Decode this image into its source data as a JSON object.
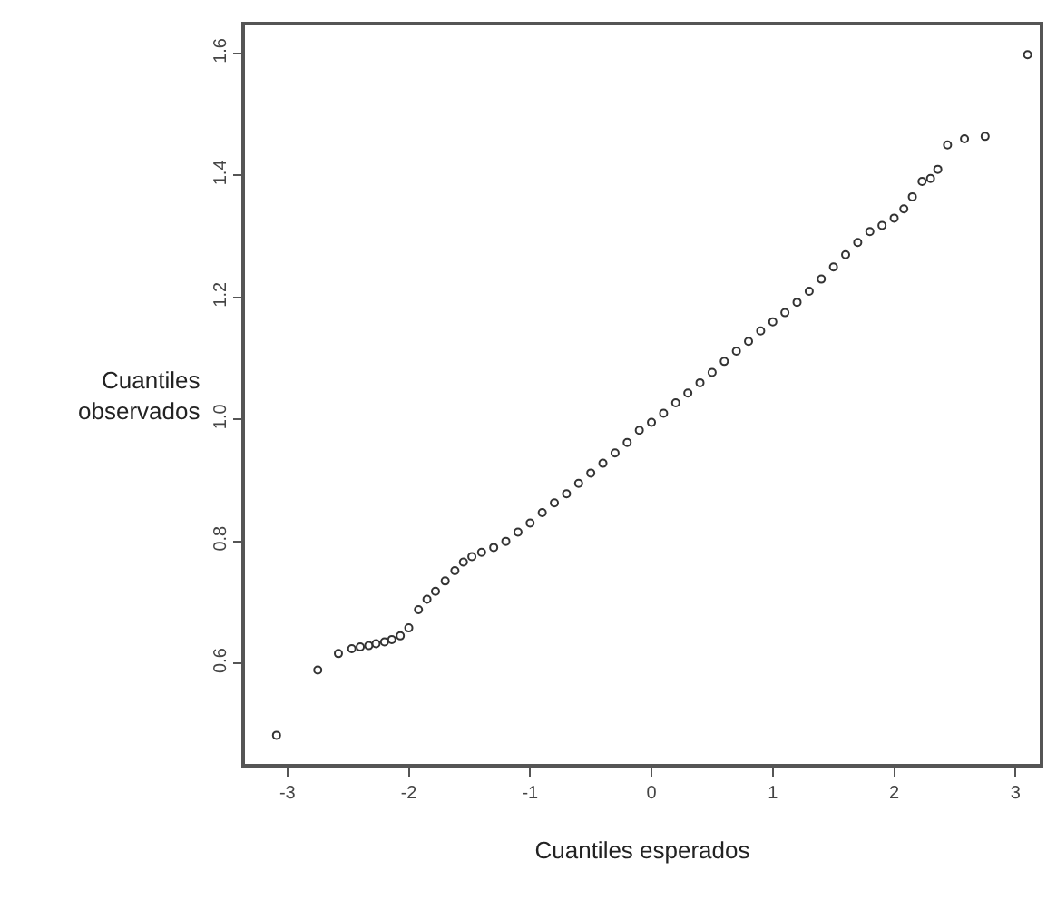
{
  "chart_data": {
    "type": "scatter",
    "xlabel": "Cuantiles esperados",
    "ylabel": "Cuantiles observados",
    "marker": "circle",
    "xlim": [
      -3.35,
      3.2
    ],
    "ylim": [
      0.435,
      1.646
    ],
    "xticks": [
      -3,
      -2,
      -1,
      0,
      1,
      2,
      3
    ],
    "yticks": [
      0.6,
      0.8,
      {
        "value": 1,
        "label": "1.0"
      },
      1.2,
      1.4,
      1.6
    ],
    "series": [
      {
        "color": "#333333",
        "x": [
          -3.09,
          -2.75,
          -2.58,
          -2.47,
          -2.4,
          -2.33,
          -2.27,
          -2.2,
          -2.14,
          -2.07,
          -2.0,
          -1.92,
          -1.85,
          -1.78,
          -1.7,
          -1.62,
          -1.55,
          -1.48,
          -1.4,
          -1.3,
          -1.2,
          -1.1,
          -1.0,
          -0.9,
          -0.8,
          -0.7,
          -0.6,
          -0.5,
          -0.4,
          -0.3,
          -0.2,
          -0.1,
          0.0,
          0.1,
          0.2,
          0.3,
          0.4,
          0.5,
          0.6,
          0.7,
          0.8,
          0.9,
          1.0,
          1.1,
          1.2,
          1.3,
          1.4,
          1.5,
          1.6,
          1.7,
          1.8,
          1.9,
          2.0,
          2.08,
          2.15,
          2.23,
          2.3,
          2.36,
          2.44,
          2.58,
          2.75,
          3.1
        ],
        "values": [
          0.482,
          0.589,
          0.616,
          0.624,
          0.627,
          0.629,
          0.632,
          0.635,
          0.639,
          0.645,
          0.658,
          0.688,
          0.705,
          0.718,
          0.735,
          0.752,
          0.766,
          0.775,
          0.782,
          0.79,
          0.8,
          0.815,
          0.83,
          0.847,
          0.863,
          0.878,
          0.895,
          0.912,
          0.928,
          0.945,
          0.962,
          0.982,
          0.995,
          1.01,
          1.027,
          1.043,
          1.06,
          1.077,
          1.095,
          1.112,
          1.128,
          1.145,
          1.16,
          1.175,
          1.192,
          1.21,
          1.23,
          1.25,
          1.27,
          1.29,
          1.308,
          1.318,
          1.33,
          1.345,
          1.365,
          1.39,
          1.395,
          1.41,
          1.45,
          1.46,
          1.464,
          1.598
        ]
      }
    ]
  }
}
